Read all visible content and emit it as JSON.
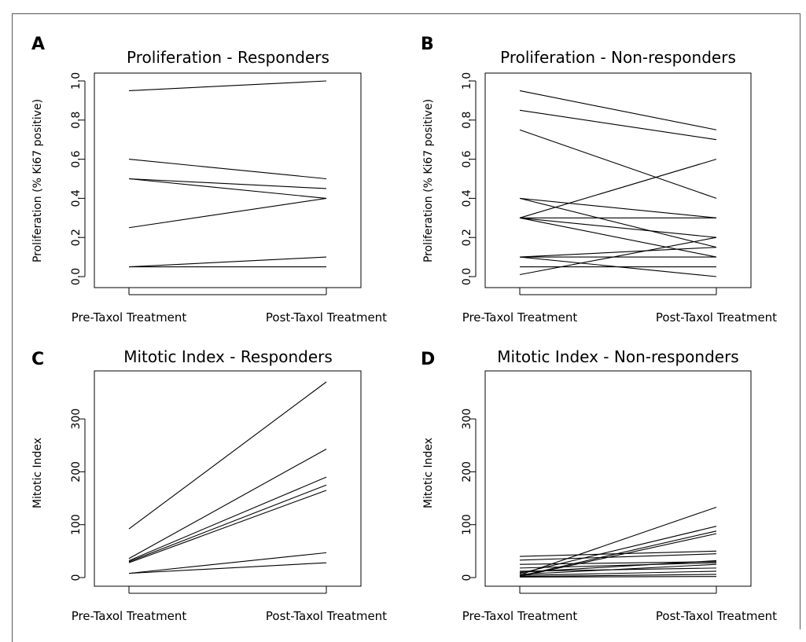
{
  "chart_data": [
    {
      "panel": "A",
      "type": "line",
      "title": "Proliferation - Responders",
      "ylabel": "Proliferation (% Ki67 positive)",
      "xlabel": "",
      "categories": [
        "Pre-Taxol Treatment",
        "Post-Taxol Treatment"
      ],
      "ylim": [
        0,
        1.0
      ],
      "yticks": [
        0.0,
        0.2,
        0.4,
        0.6,
        0.8,
        1.0
      ],
      "ytick_labels": [
        "0.0",
        "0.2",
        "0.4",
        "0.6",
        "0.8",
        "1.0"
      ],
      "series": [
        {
          "values": [
            0.95,
            1.0
          ]
        },
        {
          "values": [
            0.6,
            0.5
          ]
        },
        {
          "values": [
            0.5,
            0.45
          ]
        },
        {
          "values": [
            0.5,
            0.4
          ]
        },
        {
          "values": [
            0.25,
            0.4
          ]
        },
        {
          "values": [
            0.05,
            0.1
          ]
        },
        {
          "values": [
            0.05,
            0.05
          ]
        }
      ]
    },
    {
      "panel": "B",
      "type": "line",
      "title": "Proliferation - Non-responders",
      "ylabel": "Proliferation (% Ki67 positive)",
      "xlabel": "",
      "categories": [
        "Pre-Taxol Treatment",
        "Post-Taxol Treatment"
      ],
      "ylim": [
        0,
        1.0
      ],
      "yticks": [
        0.0,
        0.2,
        0.4,
        0.6,
        0.8,
        1.0
      ],
      "ytick_labels": [
        "0.0",
        "0.2",
        "0.4",
        "0.6",
        "0.8",
        "1.0"
      ],
      "series": [
        {
          "values": [
            0.95,
            0.75
          ]
        },
        {
          "values": [
            0.85,
            0.7
          ]
        },
        {
          "values": [
            0.75,
            0.4
          ]
        },
        {
          "values": [
            0.4,
            0.3
          ]
        },
        {
          "values": [
            0.4,
            0.15
          ]
        },
        {
          "values": [
            0.3,
            0.6
          ]
        },
        {
          "values": [
            0.3,
            0.3
          ]
        },
        {
          "values": [
            0.3,
            0.2
          ]
        },
        {
          "values": [
            0.3,
            0.1
          ]
        },
        {
          "values": [
            0.1,
            0.15
          ]
        },
        {
          "values": [
            0.1,
            0.1
          ]
        },
        {
          "values": [
            0.1,
            0.0
          ]
        },
        {
          "values": [
            0.05,
            0.05
          ]
        },
        {
          "values": [
            0.01,
            0.2
          ]
        }
      ]
    },
    {
      "panel": "C",
      "type": "line",
      "title": "Mitotic Index - Responders",
      "ylabel": "Mitotic Index",
      "xlabel": "",
      "categories": [
        "Pre-Taxol Treatment",
        "Post-Taxol Treatment"
      ],
      "ylim": [
        0,
        370
      ],
      "yticks": [
        0,
        100,
        200,
        300
      ],
      "ytick_labels": [
        "0",
        "100",
        "200",
        "300"
      ],
      "series": [
        {
          "values": [
            92,
            370
          ]
        },
        {
          "values": [
            36,
            243
          ]
        },
        {
          "values": [
            32,
            190
          ]
        },
        {
          "values": [
            30,
            175
          ]
        },
        {
          "values": [
            28,
            165
          ]
        },
        {
          "values": [
            8,
            47
          ]
        },
        {
          "values": [
            8,
            28
          ]
        }
      ]
    },
    {
      "panel": "D",
      "type": "line",
      "title": "Mitotic Index - Non-responders",
      "ylabel": "Mitotic Index",
      "xlabel": "",
      "categories": [
        "Pre-Taxol Treatment",
        "Post-Taxol Treatment"
      ],
      "ylim": [
        0,
        370
      ],
      "yticks": [
        0,
        100,
        200,
        300
      ],
      "ytick_labels": [
        "0",
        "100",
        "200",
        "300"
      ],
      "series": [
        {
          "values": [
            5,
            133
          ]
        },
        {
          "values": [
            8,
            97
          ]
        },
        {
          "values": [
            3,
            88
          ]
        },
        {
          "values": [
            2,
            83
          ]
        },
        {
          "values": [
            40,
            50
          ]
        },
        {
          "values": [
            33,
            45
          ]
        },
        {
          "values": [
            25,
            30
          ]
        },
        {
          "values": [
            18,
            28
          ]
        },
        {
          "values": [
            10,
            32
          ]
        },
        {
          "values": [
            6,
            25
          ]
        },
        {
          "values": [
            12,
            18
          ]
        },
        {
          "values": [
            4,
            12
          ]
        },
        {
          "values": [
            2,
            6
          ]
        },
        {
          "values": [
            1,
            2
          ]
        }
      ]
    }
  ]
}
